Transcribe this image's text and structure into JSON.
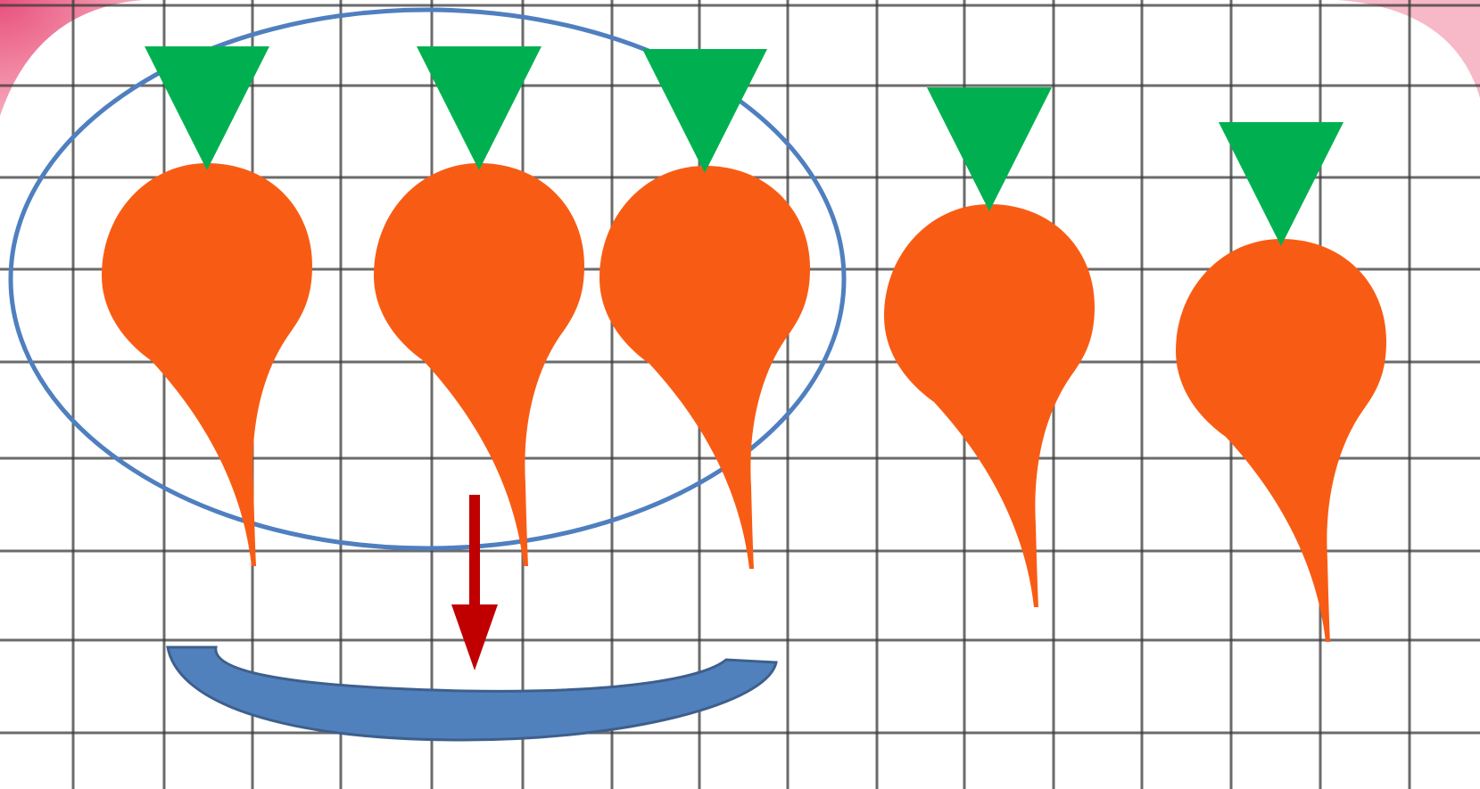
{
  "scene": {
    "colors": {
      "background": "#ffffff",
      "grid_line": "#3a3a3a",
      "corner_accent": "#f06b8a",
      "carrot_body": "#f85c14",
      "carrot_top": "#00b050",
      "group_ellipse": "#4f7fbf",
      "basket_fill": "#5081bd",
      "basket_stroke": "#3e5f8c",
      "arrow": "#c00000"
    },
    "carrots": {
      "total": 5,
      "grouped_count": 3,
      "remaining_count": 2
    },
    "icons": {
      "carrot": "carrot-icon",
      "arrow": "down-arrow-icon",
      "basket": "basket-icon",
      "group": "group-ellipse"
    }
  }
}
